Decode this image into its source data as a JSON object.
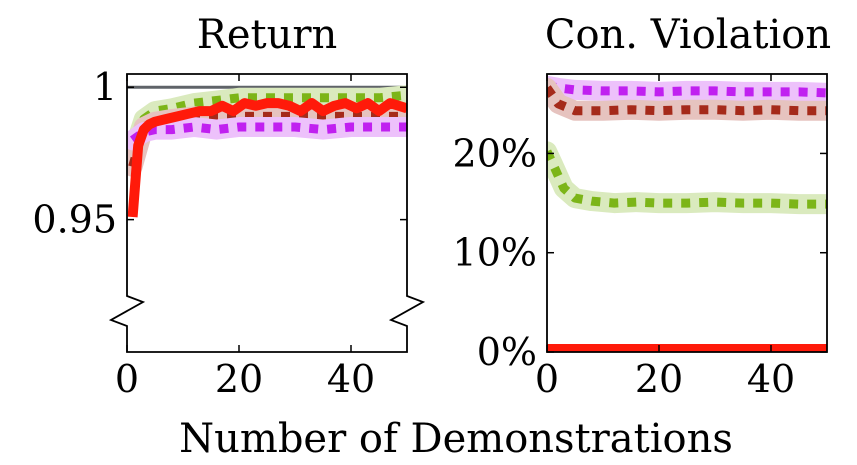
{
  "xlabel": "Number of Demonstrations",
  "chart_data": [
    {
      "type": "line",
      "title": "Return",
      "xlabel": "",
      "ylabel": "",
      "xlim": [
        0,
        50
      ],
      "ylim": [
        0.9,
        1.005
      ],
      "axis_break": true,
      "grid": false,
      "x_ticks": [
        {
          "value": 0,
          "label": "0"
        },
        {
          "value": 20,
          "label": "20"
        },
        {
          "value": 40,
          "label": "40"
        }
      ],
      "y_ticks": [
        {
          "value": 0.95,
          "label": "0.95"
        },
        {
          "value": 1.0,
          "label": "1"
        }
      ],
      "reference_line": {
        "value": 1.0,
        "color": "#5f6368"
      },
      "series": [
        {
          "color": "#7cb518",
          "style": "dotted",
          "band": true,
          "x": [
            1,
            3,
            5,
            8,
            12,
            16,
            20,
            25,
            30,
            35,
            40,
            45,
            50
          ],
          "y": [
            0.975,
            0.988,
            0.991,
            0.992,
            0.994,
            0.995,
            0.996,
            0.996,
            0.996,
            0.996,
            0.996,
            0.996,
            0.997
          ]
        },
        {
          "color": "#a52a1a",
          "style": "dotted",
          "band": true,
          "x": [
            1,
            3,
            5,
            8,
            12,
            16,
            20,
            25,
            30,
            35,
            40,
            45,
            50
          ],
          "y": [
            0.97,
            0.985,
            0.987,
            0.988,
            0.989,
            0.989,
            0.989,
            0.989,
            0.989,
            0.989,
            0.989,
            0.989,
            0.989
          ]
        },
        {
          "color": "#c020f0",
          "style": "dotted",
          "band": true,
          "x": [
            1,
            3,
            5,
            8,
            12,
            16,
            20,
            25,
            30,
            35,
            40,
            45,
            50
          ],
          "y": [
            0.98,
            0.983,
            0.984,
            0.984,
            0.985,
            0.984,
            0.985,
            0.985,
            0.985,
            0.984,
            0.985,
            0.985,
            0.985
          ]
        },
        {
          "color": "#ff1a0a",
          "style": "solid",
          "band": false,
          "x": [
            1,
            2,
            3,
            4,
            5,
            7,
            9,
            11,
            13,
            15,
            17,
            19,
            21,
            23,
            25,
            27,
            29,
            31,
            33,
            35,
            37,
            39,
            41,
            43,
            45,
            47,
            50
          ],
          "y": [
            0.951,
            0.978,
            0.984,
            0.986,
            0.987,
            0.988,
            0.989,
            0.99,
            0.991,
            0.991,
            0.993,
            0.991,
            0.994,
            0.993,
            0.994,
            0.994,
            0.993,
            0.991,
            0.994,
            0.991,
            0.993,
            0.994,
            0.992,
            0.994,
            0.991,
            0.994,
            0.992
          ]
        }
      ]
    },
    {
      "type": "line",
      "title": "Con. Violation",
      "xlabel": "",
      "ylabel": "",
      "xlim": [
        0,
        50
      ],
      "ylim": [
        0,
        28
      ],
      "grid": false,
      "x_ticks": [
        {
          "value": 0,
          "label": "0"
        },
        {
          "value": 20,
          "label": "20"
        },
        {
          "value": 40,
          "label": "40"
        }
      ],
      "y_ticks": [
        {
          "value": 0,
          "label": "0%"
        },
        {
          "value": 10,
          "label": "10%"
        },
        {
          "value": 20,
          "label": "20%"
        }
      ],
      "series": [
        {
          "color": "#c020f0",
          "style": "dotted",
          "band": true,
          "x": [
            0,
            2,
            5,
            10,
            15,
            20,
            25,
            30,
            35,
            40,
            45,
            50
          ],
          "y": [
            26.8,
            26.6,
            26.4,
            26.3,
            26.3,
            26.2,
            26.3,
            26.3,
            26.2,
            26.2,
            26.2,
            26.1
          ]
        },
        {
          "color": "#a52a1a",
          "style": "dotted",
          "band": true,
          "x": [
            0,
            2,
            5,
            10,
            15,
            20,
            25,
            30,
            35,
            40,
            45,
            50
          ],
          "y": [
            26.6,
            25.0,
            24.3,
            24.3,
            24.4,
            24.3,
            24.4,
            24.4,
            24.3,
            24.4,
            24.3,
            24.3
          ]
        },
        {
          "color": "#7cb518",
          "style": "dotted",
          "band": true,
          "x": [
            0,
            1,
            3,
            5,
            8,
            12,
            16,
            20,
            25,
            30,
            35,
            40,
            45,
            50
          ],
          "y": [
            20.2,
            19.0,
            16.5,
            15.5,
            15.2,
            15.0,
            15.1,
            15.0,
            15.0,
            15.1,
            15.0,
            15.0,
            14.9,
            14.9
          ]
        },
        {
          "color": "#ff1a0a",
          "style": "solid",
          "band": false,
          "x": [
            0,
            50
          ],
          "y": [
            0.3,
            0.3
          ]
        }
      ]
    }
  ]
}
